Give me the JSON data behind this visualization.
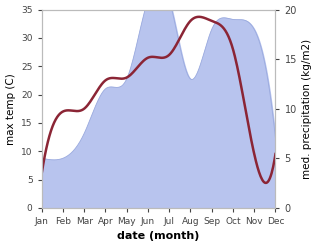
{
  "months": [
    "Jan",
    "Feb",
    "Mar",
    "Apr",
    "May",
    "Jun",
    "Jul",
    "Aug",
    "Sep",
    "Oct",
    "Nov",
    "Dec"
  ],
  "temperature": [
    6.0,
    17.0,
    17.5,
    22.5,
    23.0,
    26.5,
    27.0,
    33.0,
    33.0,
    28.0,
    9.5,
    9.5
  ],
  "precipitation": [
    5.0,
    5.0,
    7.5,
    12.0,
    13.0,
    21.0,
    21.0,
    13.0,
    18.0,
    19.0,
    18.0,
    7.0
  ],
  "temp_color": "#8b2535",
  "precip_fill_color": "#b8c4ee",
  "precip_line_color": "#9aaade",
  "ylabel_left": "max temp (C)",
  "ylabel_right": "med. precipitation (kg/m2)",
  "xlabel": "date (month)",
  "ylim_left": [
    0,
    35
  ],
  "ylim_right": [
    0,
    20
  ],
  "bg_color": "#ffffff",
  "temp_linewidth": 1.8
}
